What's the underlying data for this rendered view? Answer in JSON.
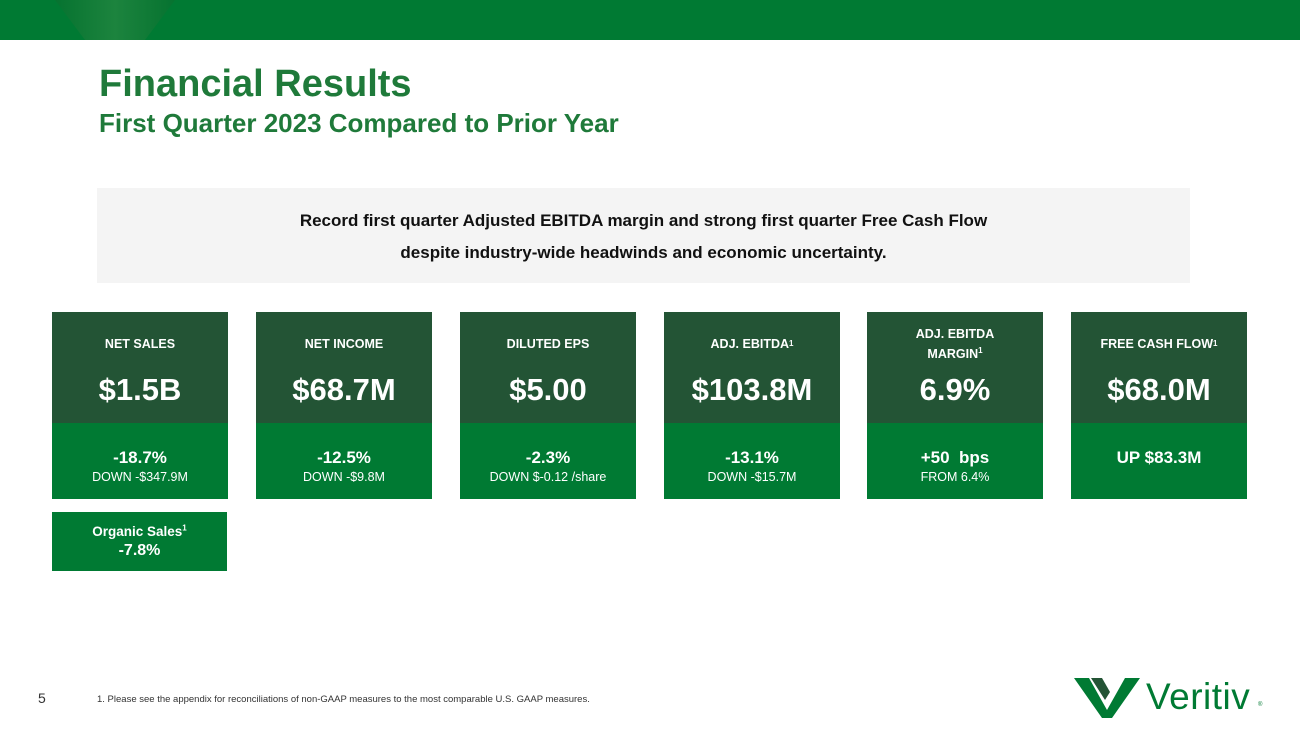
{
  "header": {
    "title": "Financial Results",
    "subtitle": "First Quarter 2023 Compared to Prior Year"
  },
  "callout": {
    "line1": "Record first quarter Adjusted EBITDA margin and strong first quarter Free Cash Flow",
    "line2": "despite industry-wide headwinds and economic uncertainty."
  },
  "kpis": [
    {
      "label": "NET SALES",
      "footnote_mark": "",
      "value": "$1.5B",
      "change": "-18.7%",
      "detail": "DOWN -$347.9M"
    },
    {
      "label": "NET INCOME",
      "footnote_mark": "",
      "value": "$68.7M",
      "change": "-12.5%",
      "detail": "DOWN -$9.8M"
    },
    {
      "label": "DILUTED EPS",
      "footnote_mark": "",
      "value": "$5.00",
      "change": "-2.3%",
      "detail": "DOWN $-0.12 /share"
    },
    {
      "label": "ADJ. EBITDA",
      "footnote_mark": "1",
      "value": "$103.8M",
      "change": "-13.1%",
      "detail": "DOWN -$15.7M"
    },
    {
      "label_line1": "ADJ. EBITDA",
      "label_line2": "MARGIN",
      "footnote_mark": "1",
      "value": "6.9%",
      "change": "+50  bps",
      "detail": "FROM 6.4%"
    },
    {
      "label": "FREE CASH FLOW",
      "footnote_mark": "1",
      "value": "$68.0M",
      "change": "UP $83.3M",
      "detail": ""
    }
  ],
  "organic_sales": {
    "label": "Organic Sales",
    "footnote_mark": "1",
    "value": "-7.8%"
  },
  "footer": {
    "page_number": "5",
    "footnote": "1.  Please see the appendix for reconciliations of non-GAAP measures to the most comparable U.S. GAAP measures.",
    "logo_text": "Veritiv",
    "logo_mark": "®"
  },
  "colors": {
    "brand_green": "#007a33",
    "dark_green": "#235435",
    "title_green": "#1f7a3a",
    "callout_bg": "#f4f4f4"
  }
}
